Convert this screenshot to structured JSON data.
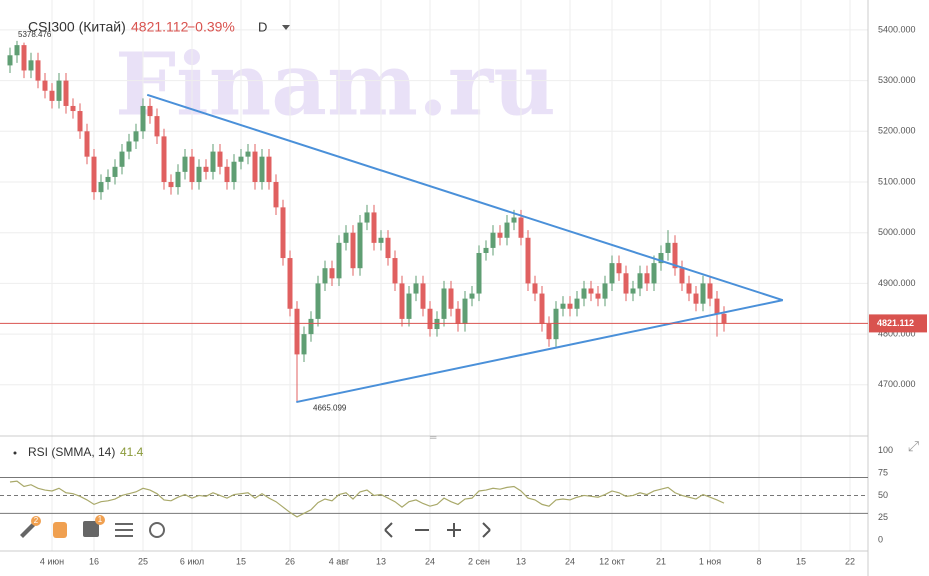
{
  "chart_data": {
    "type": "candlestick",
    "symbol": "CSI300 (Китай)",
    "last_price": "4821.112",
    "change": "−0.39%",
    "interval": "D",
    "watermark": "Finam.ru",
    "high_label": "5378.476",
    "low_label": "4665.099",
    "last_label": "4821.112",
    "up_color": "#5f9e73",
    "down_color": "#e06060",
    "trend_color": "#4a90d9",
    "last_line_color": "#d9534f",
    "ylim": [
      4601,
      5459
    ],
    "yticks": [
      {
        "value": 4700,
        "label": "4700.000"
      },
      {
        "value": 4800,
        "label": "4800.000"
      },
      {
        "value": 4900,
        "label": "4900.000"
      },
      {
        "value": 5000,
        "label": "5000.000"
      },
      {
        "value": 5100,
        "label": "5100.000"
      },
      {
        "value": 5200,
        "label": "5200.000"
      },
      {
        "value": 5300,
        "label": "5300.000"
      },
      {
        "value": 5400,
        "label": "5400.000"
      }
    ],
    "xticks": [
      {
        "value": 6,
        "label": "4 июн"
      },
      {
        "value": 12,
        "label": "16"
      },
      {
        "value": 19,
        "label": "25"
      },
      {
        "value": 26,
        "label": "6 июл"
      },
      {
        "value": 33,
        "label": "15"
      },
      {
        "value": 40,
        "label": "26"
      },
      {
        "value": 47,
        "label": "4 авг"
      },
      {
        "value": 53,
        "label": "13"
      },
      {
        "value": 60,
        "label": "24"
      },
      {
        "value": 67,
        "label": "2 сен"
      },
      {
        "value": 73,
        "label": "13"
      },
      {
        "value": 80,
        "label": "24"
      },
      {
        "value": 86,
        "label": "12 окт"
      },
      {
        "value": 93,
        "label": "21"
      },
      {
        "value": 100,
        "label": "1 ноя"
      },
      {
        "value": 107,
        "label": "8"
      },
      {
        "value": 113,
        "label": "15"
      },
      {
        "value": 120,
        "label": "22"
      }
    ],
    "grid": true,
    "ohlc": [
      [
        5330,
        5365,
        5315,
        5350
      ],
      [
        5350,
        5378.476,
        5335,
        5370
      ],
      [
        5370,
        5375,
        5305,
        5320
      ],
      [
        5320,
        5355,
        5305,
        5340
      ],
      [
        5340,
        5355,
        5285,
        5300
      ],
      [
        5300,
        5315,
        5265,
        5280
      ],
      [
        5280,
        5295,
        5245,
        5260
      ],
      [
        5260,
        5315,
        5245,
        5300
      ],
      [
        5300,
        5315,
        5235,
        5250
      ],
      [
        5250,
        5265,
        5225,
        5240
      ],
      [
        5240,
        5255,
        5185,
        5200
      ],
      [
        5200,
        5215,
        5135,
        5150
      ],
      [
        5150,
        5165,
        5065,
        5080
      ],
      [
        5080,
        5115,
        5065,
        5100
      ],
      [
        5100,
        5125,
        5085,
        5110
      ],
      [
        5110,
        5145,
        5095,
        5130
      ],
      [
        5130,
        5175,
        5115,
        5160
      ],
      [
        5160,
        5195,
        5145,
        5180
      ],
      [
        5180,
        5215,
        5165,
        5200
      ],
      [
        5200,
        5265,
        5185,
        5250
      ],
      [
        5250,
        5265,
        5215,
        5230
      ],
      [
        5230,
        5245,
        5175,
        5190
      ],
      [
        5190,
        5205,
        5085,
        5100
      ],
      [
        5100,
        5115,
        5075,
        5090
      ],
      [
        5090,
        5135,
        5075,
        5120
      ],
      [
        5120,
        5165,
        5105,
        5150
      ],
      [
        5150,
        5165,
        5085,
        5100
      ],
      [
        5100,
        5145,
        5085,
        5130
      ],
      [
        5130,
        5145,
        5105,
        5120
      ],
      [
        5120,
        5175,
        5105,
        5160
      ],
      [
        5160,
        5175,
        5115,
        5130
      ],
      [
        5130,
        5145,
        5085,
        5100
      ],
      [
        5100,
        5155,
        5085,
        5140
      ],
      [
        5140,
        5165,
        5125,
        5150
      ],
      [
        5150,
        5175,
        5135,
        5160
      ],
      [
        5160,
        5175,
        5085,
        5100
      ],
      [
        5100,
        5165,
        5085,
        5150
      ],
      [
        5150,
        5165,
        5085,
        5100
      ],
      [
        5100,
        5115,
        5035,
        5050
      ],
      [
        5050,
        5065,
        4935,
        4950
      ],
      [
        4950,
        4965,
        4835,
        4850
      ],
      [
        4850,
        4865,
        4665.099,
        4760
      ],
      [
        4760,
        4815,
        4745,
        4800
      ],
      [
        4800,
        4845,
        4785,
        4830
      ],
      [
        4830,
        4915,
        4815,
        4900
      ],
      [
        4900,
        4945,
        4885,
        4930
      ],
      [
        4930,
        4945,
        4895,
        4910
      ],
      [
        4910,
        4995,
        4895,
        4980
      ],
      [
        4980,
        5015,
        4965,
        5000
      ],
      [
        5000,
        5015,
        4915,
        4930
      ],
      [
        4930,
        5035,
        4915,
        5020
      ],
      [
        5020,
        5055,
        5005,
        5040
      ],
      [
        5040,
        5055,
        4965,
        4980
      ],
      [
        4980,
        5005,
        4965,
        4990
      ],
      [
        4990,
        5005,
        4935,
        4950
      ],
      [
        4950,
        4965,
        4885,
        4900
      ],
      [
        4900,
        4915,
        4815,
        4830
      ],
      [
        4830,
        4895,
        4815,
        4880
      ],
      [
        4880,
        4915,
        4865,
        4900
      ],
      [
        4900,
        4915,
        4835,
        4850
      ],
      [
        4850,
        4865,
        4795,
        4810
      ],
      [
        4810,
        4845,
        4795,
        4830
      ],
      [
        4830,
        4905,
        4815,
        4890
      ],
      [
        4890,
        4905,
        4835,
        4850
      ],
      [
        4850,
        4865,
        4805,
        4820
      ],
      [
        4820,
        4885,
        4805,
        4870
      ],
      [
        4870,
        4895,
        4855,
        4880
      ],
      [
        4880,
        4975,
        4865,
        4960
      ],
      [
        4960,
        4985,
        4945,
        4970
      ],
      [
        4970,
        5015,
        4955,
        5000
      ],
      [
        5000,
        5015,
        4975,
        4990
      ],
      [
        4990,
        5035,
        4975,
        5020
      ],
      [
        5020,
        5045,
        5005,
        5030
      ],
      [
        5030,
        5045,
        4975,
        4990
      ],
      [
        4990,
        5005,
        4885,
        4900
      ],
      [
        4900,
        4915,
        4865,
        4880
      ],
      [
        4880,
        4895,
        4805,
        4820
      ],
      [
        4820,
        4835,
        4775,
        4790
      ],
      [
        4790,
        4865,
        4775,
        4850
      ],
      [
        4850,
        4875,
        4835,
        4860
      ],
      [
        4860,
        4875,
        4835,
        4850
      ],
      [
        4850,
        4885,
        4835,
        4870
      ],
      [
        4870,
        4905,
        4855,
        4890
      ],
      [
        4890,
        4905,
        4865,
        4880
      ],
      [
        4880,
        4895,
        4855,
        4870
      ],
      [
        4870,
        4915,
        4855,
        4900
      ],
      [
        4900,
        4955,
        4885,
        4940
      ],
      [
        4940,
        4955,
        4905,
        4920
      ],
      [
        4920,
        4935,
        4865,
        4880
      ],
      [
        4880,
        4905,
        4865,
        4890
      ],
      [
        4890,
        4935,
        4875,
        4920
      ],
      [
        4920,
        4935,
        4885,
        4900
      ],
      [
        4900,
        4955,
        4885,
        4940
      ],
      [
        4940,
        4975,
        4925,
        4960
      ],
      [
        4960,
        5005,
        4945,
        4980
      ],
      [
        4980,
        4995,
        4915,
        4930
      ],
      [
        4930,
        4945,
        4885,
        4900
      ],
      [
        4900,
        4915,
        4865,
        4880
      ],
      [
        4880,
        4895,
        4845,
        4860
      ],
      [
        4860,
        4915,
        4845,
        4900
      ],
      [
        4900,
        4915,
        4855,
        4870
      ],
      [
        4870,
        4885,
        4795,
        4840
      ],
      [
        4840,
        4855,
        4805,
        4821.112
      ]
    ],
    "trendlines": [
      {
        "x": [
          19.6,
          110.4
        ],
        "y": [
          5272,
          4867
        ]
      },
      {
        "x": [
          40.9,
          110.4
        ],
        "y": [
          4666,
          4867
        ]
      }
    ],
    "rsi": {
      "title": "RSI (SMMA, 14)",
      "last_label": "41.4",
      "color": "#a9a96a",
      "ylim": [
        -11,
        112
      ],
      "yticks": [
        0,
        25,
        50,
        75,
        100
      ],
      "levels": [
        70,
        50,
        30
      ],
      "values": [
        65,
        66,
        60,
        62,
        58,
        56,
        55,
        58,
        53,
        52,
        49,
        45,
        40,
        43,
        44,
        46,
        50,
        52,
        54,
        58,
        56,
        52,
        45,
        44,
        48,
        51,
        47,
        50,
        49,
        53,
        50,
        47,
        51,
        52,
        53,
        47,
        52,
        47,
        43,
        37,
        31,
        26,
        30,
        34,
        42,
        46,
        44,
        51,
        53,
        46,
        54,
        56,
        50,
        51,
        47,
        43,
        37,
        43,
        45,
        41,
        38,
        40,
        47,
        43,
        40,
        46,
        47,
        55,
        56,
        58,
        57,
        59,
        60,
        55,
        47,
        45,
        40,
        38,
        45,
        46,
        45,
        48,
        50,
        49,
        48,
        51,
        55,
        53,
        49,
        50,
        53,
        51,
        55,
        57,
        59,
        53,
        50,
        48,
        46,
        51,
        48,
        45,
        41.4
      ]
    },
    "toolbar_badges": [
      "2",
      "1"
    ]
  }
}
